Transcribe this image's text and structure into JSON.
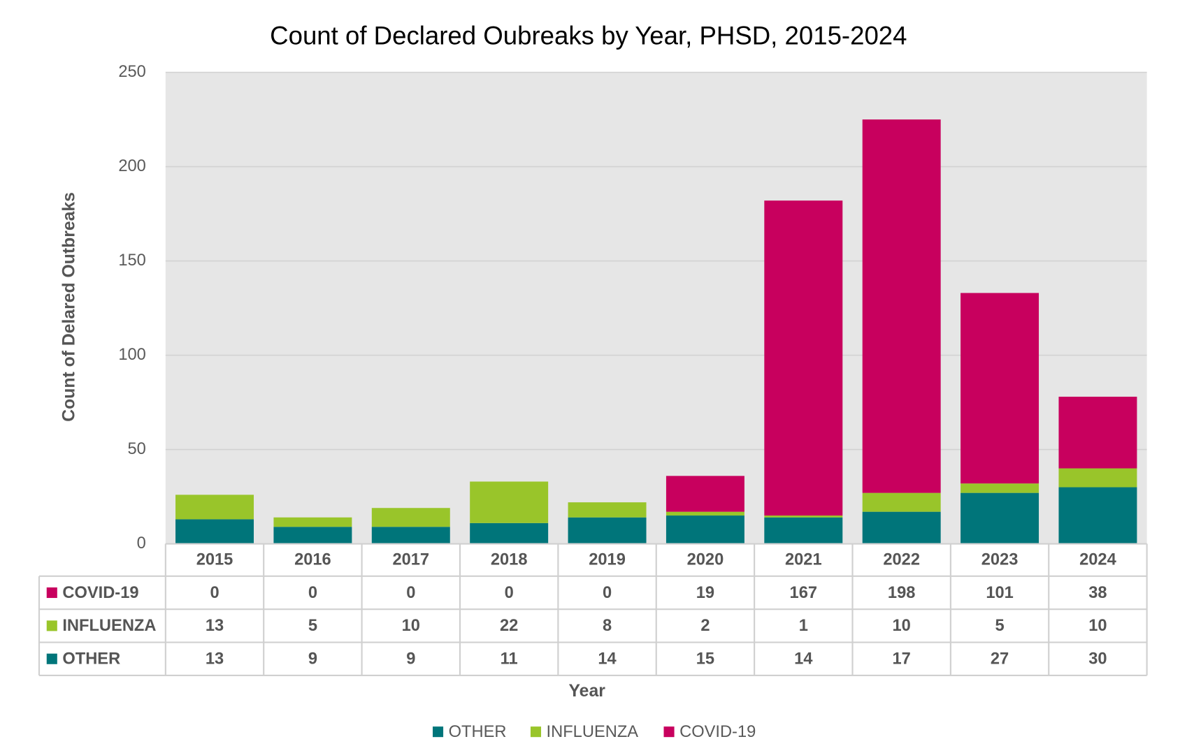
{
  "chart_data": {
    "type": "bar",
    "stacked": true,
    "title": "Count of Declared Oubreaks by Year, PHSD, 2015-2024",
    "x_label": "Year",
    "y_label": "Count of Delared Outbreaks",
    "categories": [
      "2015",
      "2016",
      "2017",
      "2018",
      "2019",
      "2020",
      "2021",
      "2022",
      "2023",
      "2024"
    ],
    "series": [
      {
        "name": "OTHER",
        "color": "#00757a",
        "values": [
          13,
          9,
          9,
          11,
          14,
          15,
          14,
          17,
          27,
          30
        ]
      },
      {
        "name": "INFLUENZA",
        "color": "#99c52a",
        "values": [
          13,
          5,
          10,
          22,
          8,
          2,
          1,
          10,
          5,
          10
        ]
      },
      {
        "name": "COVID-19",
        "color": "#c8005e",
        "values": [
          0,
          0,
          0,
          0,
          0,
          19,
          167,
          198,
          101,
          38
        ]
      }
    ],
    "ylim": [
      0,
      250
    ],
    "yticks": [
      0,
      50,
      100,
      150,
      200,
      250
    ],
    "grid": true,
    "data_table": true,
    "legend": "bottom"
  }
}
